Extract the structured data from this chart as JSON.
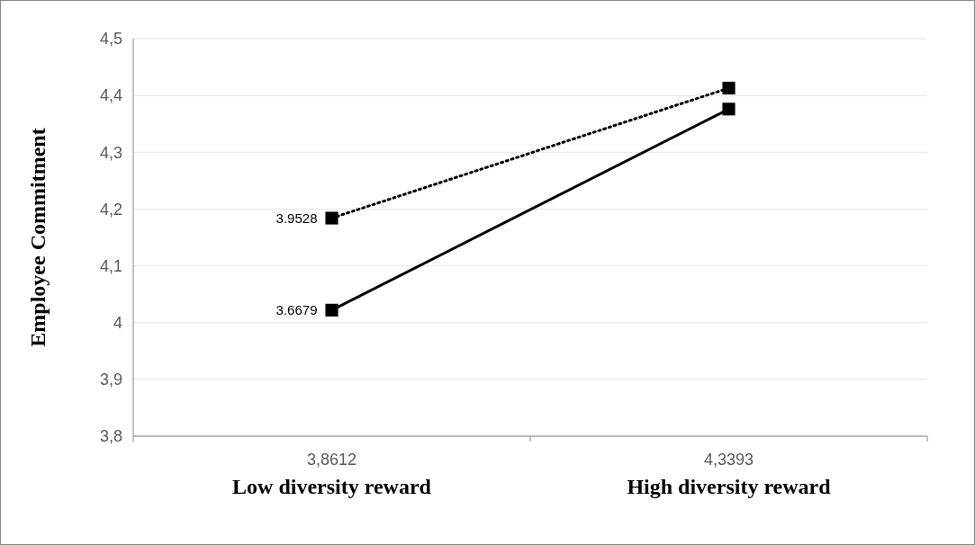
{
  "chart_data": {
    "type": "line",
    "ylabel": "Employee Commitment",
    "categories": [
      "3,8612",
      "4,3393"
    ],
    "series": [
      {
        "color": "#000000",
        "line_style": "dotted",
        "values": [
          4.184,
          4.413
        ]
      },
      {
        "color": "#000000",
        "line_style": "solid",
        "values": [
          4.022,
          4.376
        ]
      }
    ],
    "ylim": [
      3.8,
      4.5
    ],
    "yticks": [
      {
        "value": 3.8,
        "label": "3,8"
      },
      {
        "value": 3.9,
        "label": "3,9"
      },
      4,
      {
        "value": 4.1,
        "label": "4,1"
      },
      {
        "value": 4.2,
        "label": "4,2"
      },
      {
        "value": 4.3,
        "label": "4,3"
      },
      {
        "value": 4.4,
        "label": "4,4"
      },
      {
        "value": 4.5,
        "label": "4,5"
      }
    ],
    "grid": "y",
    "marker": "square",
    "annotations": [
      {
        "text": "3.9528",
        "x": "3,8612",
        "y": 4.184
      },
      {
        "text": "3.6679",
        "x": "3,8612",
        "y": 4.022
      },
      "Low diversity reward",
      "High diversity reward"
    ]
  }
}
